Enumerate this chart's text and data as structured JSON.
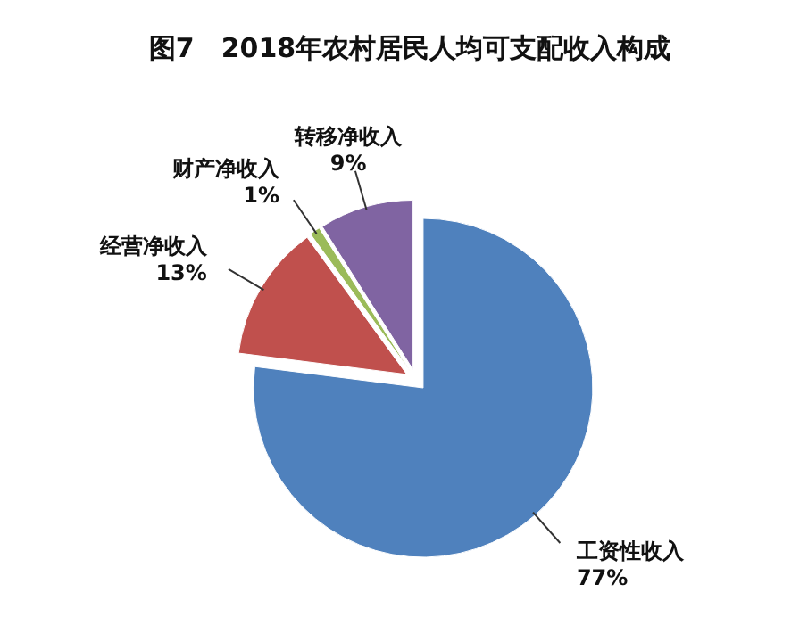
{
  "chart_data": {
    "type": "pie",
    "title": "图7　2018年农村居民人均可支配收入构成",
    "categories": [
      "工资性收入",
      "经营净收入",
      "财产净收入",
      "转移净收入"
    ],
    "values": [
      77,
      13,
      1,
      9
    ],
    "value_labels": [
      "77%",
      "13%",
      "1%",
      "9%"
    ],
    "colors": [
      "#4f81bd",
      "#c0504d",
      "#9bbb59",
      "#8064a2"
    ],
    "legend": false
  }
}
